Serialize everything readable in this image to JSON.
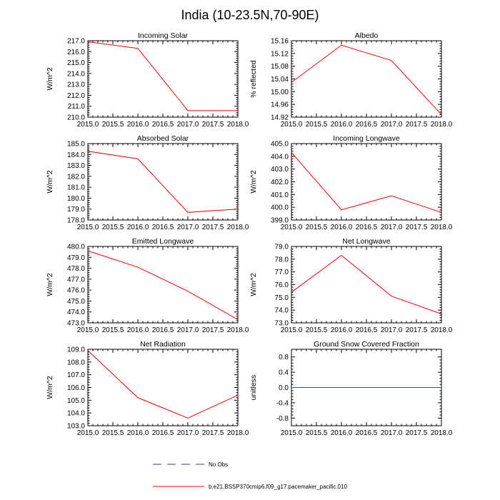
{
  "figure": {
    "title": "India (10-23.5N,70-90E)",
    "line_color": "#ff0000",
    "obs_color": "#3a3a8c"
  },
  "legend": {
    "obs_label": "No Obs",
    "model_label": "b.e21.BSSP370cmip6.f09_g17.pacemaker_pacific.010"
  },
  "chart_data": [
    {
      "type": "line",
      "title": "Incoming Solar",
      "ylabel": "W/m^2",
      "x": [
        2015.0,
        2016.0,
        2017.0,
        2018.0
      ],
      "values": [
        216.9,
        216.3,
        210.6,
        210.6
      ],
      "ylim": [
        210.0,
        217.0
      ],
      "yticks": [
        "210.0",
        "211.0",
        "212.0",
        "213.0",
        "214.0",
        "215.0",
        "216.0",
        "217.0"
      ],
      "xticks": [
        "2015.0",
        "2015.5",
        "2016.0",
        "2016.5",
        "2017.0",
        "2017.5",
        "2018.0"
      ]
    },
    {
      "type": "line",
      "title": "Albedo",
      "ylabel": "% reflected",
      "x": [
        2015.0,
        2016.0,
        2017.0,
        2018.0
      ],
      "values": [
        15.029,
        15.146,
        15.098,
        14.928
      ],
      "ylim": [
        14.92,
        15.16
      ],
      "yticks": [
        "14.92",
        "14.96",
        "15.00",
        "15.04",
        "15.08",
        "15.12",
        "15.16"
      ],
      "xticks": [
        "2015.0",
        "2015.5",
        "2016.0",
        "2016.5",
        "2017.0",
        "2017.5",
        "2018.0"
      ]
    },
    {
      "type": "line",
      "title": "Absorbed Solar",
      "ylabel": "W/m^2",
      "x": [
        2015.0,
        2016.0,
        2017.0,
        2018.0
      ],
      "values": [
        184.3,
        183.6,
        178.7,
        179.0
      ],
      "ylim": [
        178.0,
        185.0
      ],
      "yticks": [
        "178.0",
        "179.0",
        "180.0",
        "181.0",
        "182.0",
        "183.0",
        "184.0",
        "185.0"
      ],
      "xticks": [
        "2015.0",
        "2015.5",
        "2016.0",
        "2016.5",
        "2017.0",
        "2017.5",
        "2018.0"
      ]
    },
    {
      "type": "line",
      "title": "Incoming Longwave",
      "ylabel": "W/m^2",
      "x": [
        2015.0,
        2016.0,
        2017.0,
        2018.0
      ],
      "values": [
        404.3,
        399.8,
        400.9,
        399.6
      ],
      "ylim": [
        399.0,
        405.0
      ],
      "yticks": [
        "399.0",
        "400.0",
        "401.0",
        "402.0",
        "403.0",
        "404.0",
        "405.0"
      ],
      "xticks": [
        "2015.0",
        "2015.5",
        "2016.0",
        "2016.5",
        "2017.0",
        "2017.5",
        "2018.0"
      ]
    },
    {
      "type": "line",
      "title": "Emitted Longwave",
      "ylabel": "W/m^2",
      "x": [
        2015.0,
        2016.0,
        2017.0,
        2018.0
      ],
      "values": [
        479.6,
        478.1,
        475.9,
        473.3
      ],
      "ylim": [
        473.0,
        480.0
      ],
      "yticks": [
        "473.0",
        "474.0",
        "475.0",
        "476.0",
        "477.0",
        "478.0",
        "479.0",
        "480.0"
      ],
      "xticks": [
        "2015.0",
        "2015.5",
        "2016.0",
        "2016.5",
        "2017.0",
        "2017.5",
        "2018.0"
      ]
    },
    {
      "type": "line",
      "title": "Net Longwave",
      "ylabel": "W/m^2",
      "x": [
        2015.0,
        2016.0,
        2017.0,
        2018.0
      ],
      "values": [
        75.4,
        78.3,
        75.1,
        73.7
      ],
      "ylim": [
        73.0,
        79.0
      ],
      "yticks": [
        "73.0",
        "74.0",
        "75.0",
        "76.0",
        "77.0",
        "78.0",
        "79.0"
      ],
      "xticks": [
        "2015.0",
        "2015.5",
        "2016.0",
        "2016.5",
        "2017.0",
        "2017.5",
        "2018.0"
      ]
    },
    {
      "type": "line",
      "title": "Net Radiation",
      "ylabel": "W/m^2",
      "x": [
        2015.0,
        2016.0,
        2017.0,
        2018.0
      ],
      "values": [
        108.9,
        105.2,
        103.6,
        105.4
      ],
      "ylim": [
        103.0,
        109.0
      ],
      "yticks": [
        "103.0",
        "104.0",
        "105.0",
        "106.0",
        "107.0",
        "108.0",
        "109.0"
      ],
      "xticks": [
        "2015.0",
        "2015.5",
        "2016.0",
        "2016.5",
        "2017.0",
        "2017.5",
        "2018.0"
      ]
    },
    {
      "type": "line",
      "title": "Ground Snow Covered Fraction",
      "ylabel": "unitless",
      "x": [
        2015.0,
        2016.0,
        2017.0,
        2018.0
      ],
      "values": [
        0.0,
        0.0,
        0.0,
        0.0
      ],
      "ylim": [
        -1.0,
        1.0
      ],
      "yticks": [
        "-0.8",
        "-0.4",
        "0.0",
        "0.4",
        "0.8"
      ],
      "xticks": [
        "2015.0",
        "2015.5",
        "2016.0",
        "2016.5",
        "2017.0",
        "2017.5",
        "2018.0"
      ]
    }
  ]
}
